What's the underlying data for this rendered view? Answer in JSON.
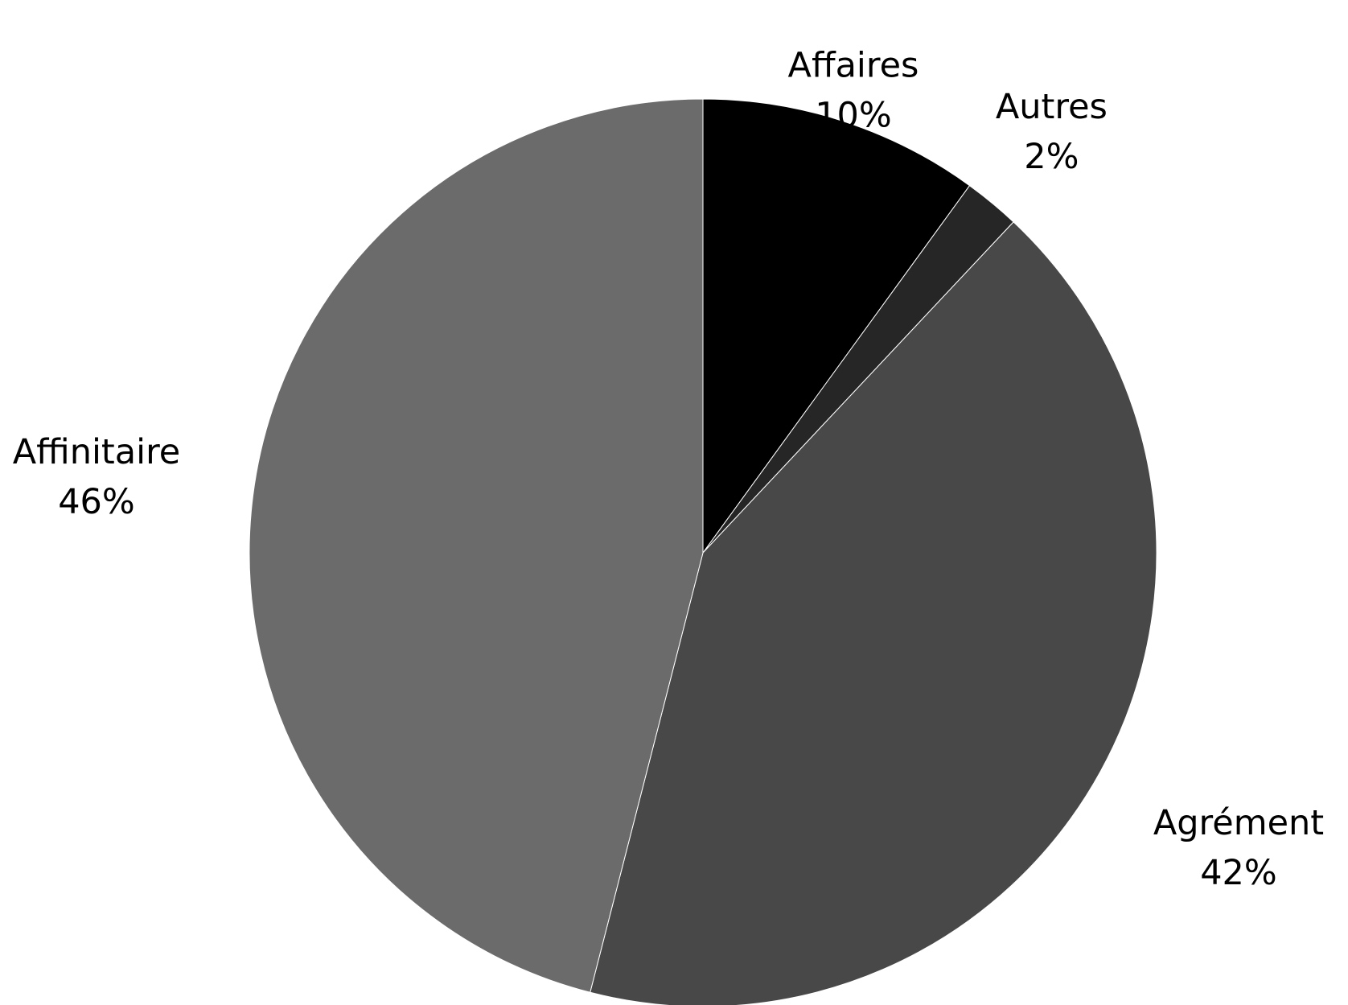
{
  "chart_data": {
    "type": "pie",
    "title": "",
    "legend": "none",
    "start_angle_deg": 0,
    "direction": "clockwise",
    "slices": [
      {
        "label": "Affaires",
        "value": 10,
        "value_label": "10%",
        "color": "#000000"
      },
      {
        "label": "Autres",
        "value": 2,
        "value_label": "2%",
        "color": "#262626"
      },
      {
        "label": "Agrément",
        "value": 42,
        "value_label": "42%",
        "color": "#484848"
      },
      {
        "label": "Affinitaire",
        "value": 46,
        "value_label": "46%",
        "color": "#6b6b6b"
      }
    ]
  }
}
